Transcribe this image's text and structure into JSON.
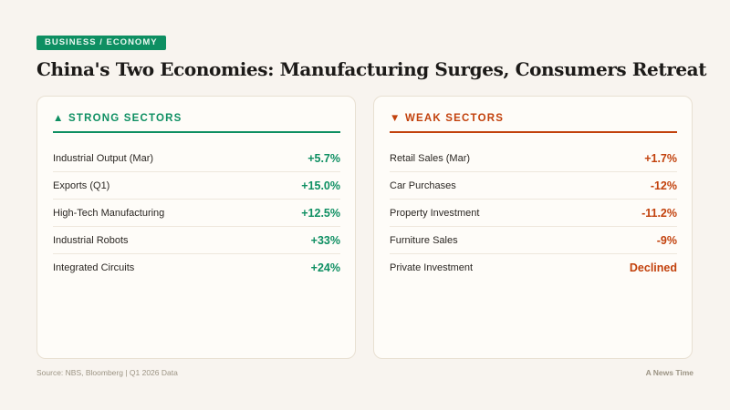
{
  "tag": "BUSINESS / ECONOMY",
  "title": "China's Two Economies: Manufacturing Surges, Consumers Retreat",
  "strong": {
    "icon": "triangle-up-icon",
    "header": "▲ STRONG SECTORS",
    "color": "#0e8f62",
    "rows": [
      {
        "label": "Industrial Output (Mar)",
        "value": "+5.7%"
      },
      {
        "label": "Exports (Q1)",
        "value": "+15.0%"
      },
      {
        "label": "High-Tech Manufacturing",
        "value": "+12.5%"
      },
      {
        "label": "Industrial Robots",
        "value": "+33%"
      },
      {
        "label": "Integrated Circuits",
        "value": "+24%"
      }
    ]
  },
  "weak": {
    "icon": "triangle-down-icon",
    "header": "▼ WEAK SECTORS",
    "color": "#c2410c",
    "rows": [
      {
        "label": "Retail Sales (Mar)",
        "value": "+1.7%"
      },
      {
        "label": "Car Purchases",
        "value": "-12%"
      },
      {
        "label": "Property Investment",
        "value": "-11.2%"
      },
      {
        "label": "Furniture Sales",
        "value": "-9%"
      },
      {
        "label": "Private Investment",
        "value": "Declined"
      }
    ]
  },
  "footer": {
    "source": "Source: NBS, Bloomberg | Q1 2026 Data",
    "brand": "A News Time"
  }
}
